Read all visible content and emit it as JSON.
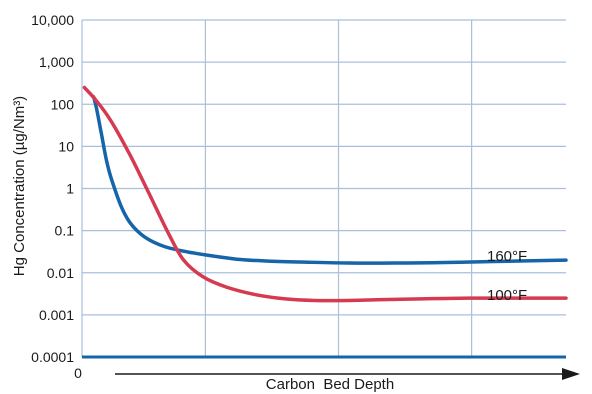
{
  "chart_data": {
    "type": "line",
    "title": "",
    "xlabel": "Carbon  Bed Depth",
    "ylabel": "Hg Concentration (µg/Nm³)",
    "yscale": "log",
    "ylim": [
      0.0001,
      10000
    ],
    "xlim": [
      0,
      100
    ],
    "x_origin_label": "0",
    "y_tick_labels": [
      "10,000",
      "1,000",
      "100",
      "10",
      "1",
      "0.1",
      "0.01",
      "0.001",
      "0.0001"
    ],
    "y_tick_values": [
      10000,
      1000,
      100,
      10,
      1,
      0.1,
      0.01,
      0.001,
      0.0001
    ],
    "x_axis_arrow": true,
    "grid": true,
    "colors": {
      "grid": "#a8c0dc",
      "axis": "#1565a8",
      "s160": "#1565a8",
      "s100": "#d63a50",
      "text": "#1a1a1a"
    },
    "series": [
      {
        "name": "160°F",
        "color": "#1565a8",
        "x": [
          2.4,
          3,
          4,
          5,
          6,
          8,
          10,
          13,
          17,
          22,
          27,
          32,
          38,
          45,
          55,
          65,
          75,
          85,
          100
        ],
        "y": [
          150,
          80,
          20,
          5,
          1.8,
          0.4,
          0.15,
          0.07,
          0.042,
          0.031,
          0.025,
          0.021,
          0.019,
          0.018,
          0.017,
          0.017,
          0.0175,
          0.0185,
          0.02
        ]
      },
      {
        "name": "100°F",
        "color": "#d63a50",
        "x": [
          0.5,
          3,
          6,
          10,
          14,
          18,
          21,
          25,
          30,
          36,
          42,
          48,
          55,
          62,
          70,
          80,
          90,
          100
        ],
        "y": [
          250,
          120,
          40,
          6,
          0.7,
          0.08,
          0.02,
          0.008,
          0.0045,
          0.003,
          0.0024,
          0.0022,
          0.0022,
          0.0023,
          0.0024,
          0.0025,
          0.0025,
          0.0025
        ]
      }
    ]
  }
}
